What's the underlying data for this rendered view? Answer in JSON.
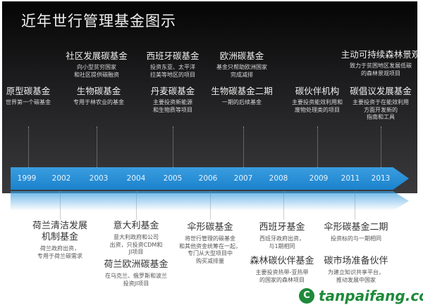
{
  "title": "近年世行管理基金图示",
  "colors": {
    "bar": "#1b82cc",
    "panel": "#1c1c1e",
    "watermark": "#1e8a3a"
  },
  "years": [
    "1999",
    "2002",
    "2003",
    "2004",
    "2005",
    "2006",
    "2007",
    "2008",
    "2009",
    "2011",
    "2013"
  ],
  "top_items": [
    {
      "name": "原型碳基金",
      "desc": "世界第一个碳基金"
    },
    {
      "name": "社区发展碳基金",
      "desc": "向小型贫穷国家\n和社区提供碳融资"
    },
    {
      "name": "生物碳基金",
      "desc": "专用于林农业的基金"
    },
    {
      "name": "西班牙碳基金",
      "desc": "投资东亚、太平洋\n拉美等地区的项目"
    },
    {
      "name": "丹麦碳基金",
      "desc": "主要投资新能源\n和生物质等项目"
    },
    {
      "name": "欧洲碳基金",
      "desc": "基金只帮助欧洲国家\n完成减排"
    },
    {
      "name": "生物碳基金二期",
      "desc": "一期的后续基金"
    },
    {
      "name": "碳伙伴机构",
      "desc": "主要投资能效利用和\n废物处理类的项目"
    },
    {
      "name": "主动可持续森林景观",
      "desc": "致力于贫困地区发展低碳\n的森林景观项目"
    },
    {
      "name": "碳倡议发展基金",
      "desc": "主要投资于在能效利用\n方面开发新的\n指南和工具"
    }
  ],
  "bottom_items": [
    {
      "name": "荷兰清洁发展\n机制基金",
      "desc": "荷兰政府出资，\n专用于荷兰碳需求"
    },
    {
      "name": "意大利基金",
      "desc": "意大利政府和公司\n出资，只投资CDM和\nJI项目"
    },
    {
      "name": "荷兰欧洲碳基金",
      "desc": "在乌克兰、俄罗斯和波兰\n投资JI项目"
    },
    {
      "name": "伞形碳基金",
      "desc": "将世行管理的碳基金\n和其他资金统筹在一起，\n专门从大型项目中\n购买减排量"
    },
    {
      "name": "西班牙基金",
      "desc": "西班牙政府出资，\n与1期相同"
    },
    {
      "name": "森林碳伙伴基金",
      "desc": "主要投资热带-亚热带\n的国家的森林项目"
    },
    {
      "name": "伞形碳基金二期",
      "desc": "投资标的与一期相同"
    },
    {
      "name": "碳市场准备伙伴",
      "desc": "为建立知识共享平台，\n推动发展中国家"
    }
  ],
  "watermark": {
    "logo_letter": "C",
    "text": "tanpaifang.com"
  }
}
